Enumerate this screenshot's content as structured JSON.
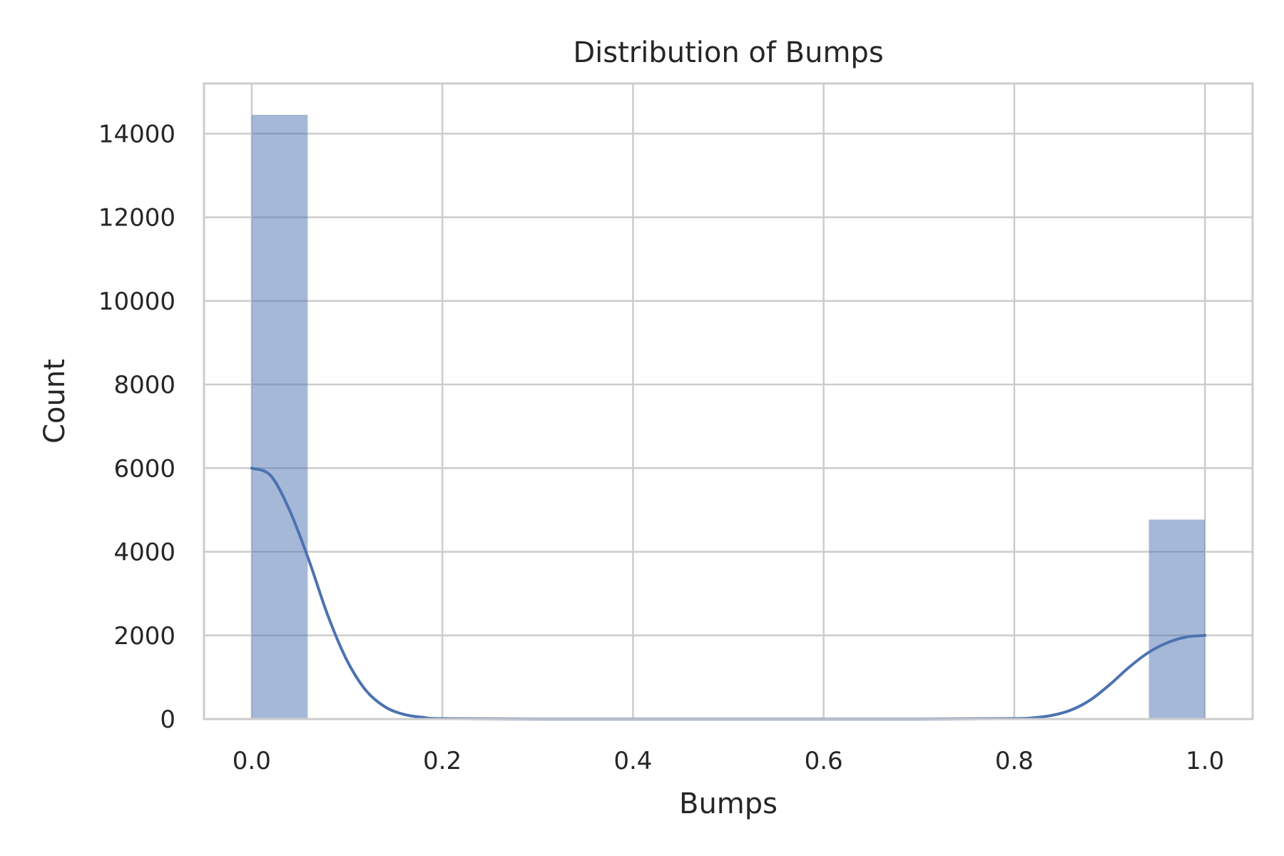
{
  "chart_data": {
    "type": "bar",
    "title": "Distribution of Bumps",
    "xlabel": "Bumps",
    "ylabel": "Count",
    "xlim": [
      -0.05,
      1.05
    ],
    "ylim": [
      0,
      15200
    ],
    "grid": true,
    "x_ticks": [
      0.0,
      0.2,
      0.4,
      0.6,
      0.8,
      1.0
    ],
    "x_tick_labels": [
      "0.0",
      "0.2",
      "0.4",
      "0.6",
      "0.8",
      "1.0"
    ],
    "y_ticks": [
      0,
      2000,
      4000,
      6000,
      8000,
      10000,
      12000,
      14000
    ],
    "y_tick_labels": [
      "0",
      "2000",
      "4000",
      "6000",
      "8000",
      "10000",
      "12000",
      "14000"
    ],
    "bar_color": "#4c72b0",
    "bar_opacity": 0.5,
    "bins": [
      {
        "x0": 0.0,
        "x1": 0.0588,
        "count": 14450
      },
      {
        "x0": 0.9412,
        "x1": 1.0,
        "count": 4770
      }
    ],
    "kde": {
      "color": "#4c72b0",
      "x": [
        0.0,
        0.02,
        0.04,
        0.06,
        0.08,
        0.1,
        0.12,
        0.14,
        0.16,
        0.18,
        0.2,
        0.3,
        0.5,
        0.7,
        0.8,
        0.82,
        0.84,
        0.86,
        0.88,
        0.9,
        0.92,
        0.94,
        0.96,
        0.98,
        1.0
      ],
      "y": [
        6000,
        5820,
        4980,
        3800,
        2470,
        1400,
        680,
        290,
        110,
        40,
        10,
        0,
        0,
        0,
        10,
        30,
        90,
        220,
        460,
        820,
        1230,
        1580,
        1820,
        1960,
        2000
      ]
    }
  }
}
